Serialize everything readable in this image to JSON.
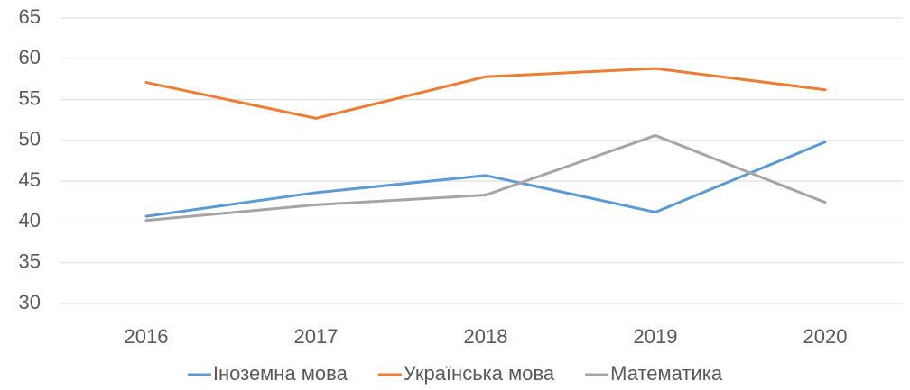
{
  "chart_data": {
    "type": "line",
    "categories": [
      "2016",
      "2017",
      "2018",
      "2019",
      "2020"
    ],
    "series": [
      {
        "name": "Іноземна мова",
        "color": "#5b9bd5",
        "values": [
          40.7,
          43.6,
          45.7,
          41.2,
          49.8
        ]
      },
      {
        "name": "Українська мова",
        "color": "#ed7d31",
        "values": [
          57.1,
          52.7,
          57.8,
          58.8,
          56.2
        ]
      },
      {
        "name": "Математика",
        "color": "#a5a5a5",
        "values": [
          40.2,
          42.1,
          43.3,
          50.6,
          42.4
        ]
      }
    ],
    "ylim": [
      30,
      65
    ],
    "yticks": [
      30,
      35,
      40,
      45,
      50,
      55,
      60,
      65
    ],
    "grid": true,
    "legend": "bottom"
  }
}
